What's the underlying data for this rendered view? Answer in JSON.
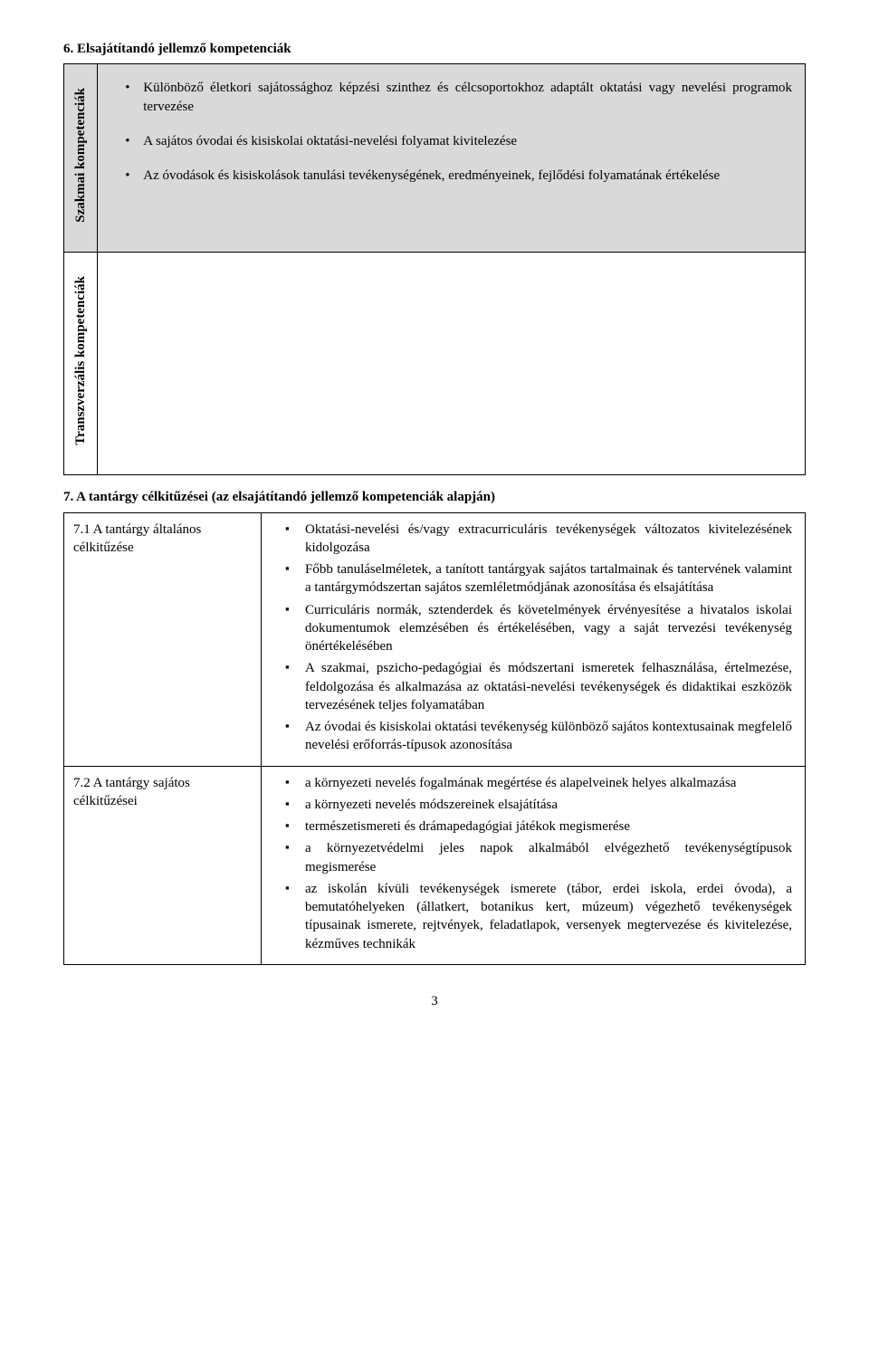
{
  "section6": {
    "heading": "6. Elsajátítandó jellemző kompetenciák",
    "row1": {
      "label": "Szakmai kompetenciák",
      "items": [
        "Különböző életkori sajátossághoz képzési szinthez és célcsoportokhoz adaptált oktatási vagy nevelési programok tervezése",
        "A sajátos óvodai és kisiskolai oktatási-nevelési folyamat kivitelezése",
        "Az óvodások és kisiskolások tanulási tevékenységének, eredményeinek, fejlődési folyamatának értékelése"
      ]
    },
    "row2": {
      "label": "Transzverzális kompetenciák"
    }
  },
  "section7": {
    "heading": "7. A tantárgy célkitűzései (az elsajátítandó jellemző kompetenciák alapján)",
    "row1": {
      "left": "7.1 A tantárgy általános célkitűzése",
      "items": [
        "Oktatási-nevelési és/vagy extracurriculáris tevékenységek változatos kivitelezésének kidolgozása",
        "Főbb tanuláselméletek, a tanított tantárgyak sajátos tartalmainak és tantervének valamint a tantárgymódszertan sajátos szemléletmódjának azonosítása és elsajátítása",
        "Curriculáris normák, sztenderdek és követelmények érvényesítése a hivatalos iskolai dokumentumok elemzésében és értékelésében, vagy a saját tervezési tevékenység önértékelésében",
        "A szakmai, pszicho-pedagógiai és módszertani ismeretek felhasználása, értelmezése, feldolgozása és alkalmazása az oktatási-nevelési tevékenységek és didaktikai eszközök tervezésének teljes folyamatában",
        "Az óvodai és kisiskolai oktatási tevékenység különböző sajátos kontextusainak megfelelő nevelési erőforrás-típusok azonosítása"
      ]
    },
    "row2": {
      "left": "7.2 A tantárgy sajátos célkitűzései",
      "items": [
        "a környezeti nevelés fogalmának megértése és alapelveinek helyes alkalmazása",
        "a környezeti nevelés módszereinek elsajátítása",
        "természetismereti és drámapedagógiai játékok megismerése",
        "a környezetvédelmi jeles napok alkalmából elvégezhető tevékenységtípusok megismerése",
        "az iskolán kívüli tevékenységek ismerete (tábor, erdei iskola, erdei óvoda), a bemutatóhelyeken (állatkert, botanikus kert, múzeum) végezhető tevékenységek típusainak ismerete, rejtvények, feladatlapok, versenyek megtervezése és kivitelezése, kézműves technikák"
      ]
    }
  },
  "pageNumber": "3"
}
